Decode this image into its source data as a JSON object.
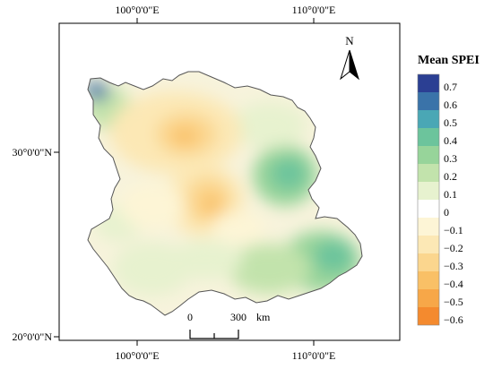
{
  "map": {
    "axis_labels": {
      "top": [
        "100°0'0\"E",
        "110°0'0\"E"
      ],
      "bottom": [
        "100°0'0\"E",
        "110°0'0\"E"
      ],
      "left": [
        "30°0'0\"N",
        "20°0'0\"N"
      ]
    },
    "north_arrow": {
      "letter": "N"
    },
    "scale_bar": {
      "labels": [
        "0",
        "300",
        "km"
      ]
    },
    "legend": {
      "title": "Mean SPEI",
      "items": [
        {
          "label": "0.7",
          "color": "#2b3f93"
        },
        {
          "label": "0.6",
          "color": "#3a73a9"
        },
        {
          "label": "0.5",
          "color": "#4aa7b5"
        },
        {
          "label": "0.4",
          "color": "#6cc49c"
        },
        {
          "label": "0.3",
          "color": "#97d49a"
        },
        {
          "label": "0.2",
          "color": "#c2e3ac"
        },
        {
          "label": "0.1",
          "color": "#e7f2cf"
        },
        {
          "label": "0",
          "color": "#ffffff"
        },
        {
          "label": "−0.1",
          "color": "#fdf5d6"
        },
        {
          "label": "−0.2",
          "color": "#fce8b5"
        },
        {
          "label": "−0.3",
          "color": "#fbd68e"
        },
        {
          "label": "−0.4",
          "color": "#f9c066"
        },
        {
          "label": "−0.5",
          "color": "#f7a748"
        },
        {
          "label": "−0.6",
          "color": "#f48a2e"
        }
      ]
    }
  }
}
